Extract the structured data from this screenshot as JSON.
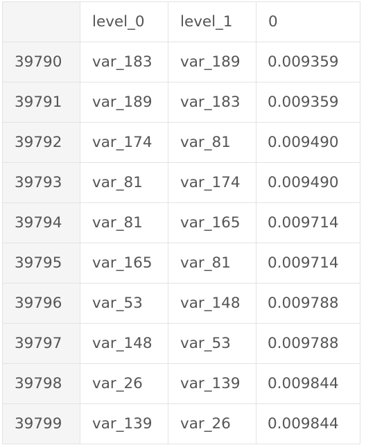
{
  "table": {
    "columns": [
      "",
      "level_0",
      "level_1",
      "0"
    ],
    "rows": [
      {
        "index": "39790",
        "level_0": "var_183",
        "level_1": "var_189",
        "value": "0.009359"
      },
      {
        "index": "39791",
        "level_0": "var_189",
        "level_1": "var_183",
        "value": "0.009359"
      },
      {
        "index": "39792",
        "level_0": "var_174",
        "level_1": "var_81",
        "value": "0.009490"
      },
      {
        "index": "39793",
        "level_0": "var_81",
        "level_1": "var_174",
        "value": "0.009490"
      },
      {
        "index": "39794",
        "level_0": "var_81",
        "level_1": "var_165",
        "value": "0.009714"
      },
      {
        "index": "39795",
        "level_0": "var_165",
        "level_1": "var_81",
        "value": "0.009714"
      },
      {
        "index": "39796",
        "level_0": "var_53",
        "level_1": "var_148",
        "value": "0.009788"
      },
      {
        "index": "39797",
        "level_0": "var_148",
        "level_1": "var_53",
        "value": "0.009788"
      },
      {
        "index": "39798",
        "level_0": "var_26",
        "level_1": "var_139",
        "value": "0.009844"
      },
      {
        "index": "39799",
        "level_0": "var_139",
        "level_1": "var_26",
        "value": "0.009844"
      }
    ]
  }
}
